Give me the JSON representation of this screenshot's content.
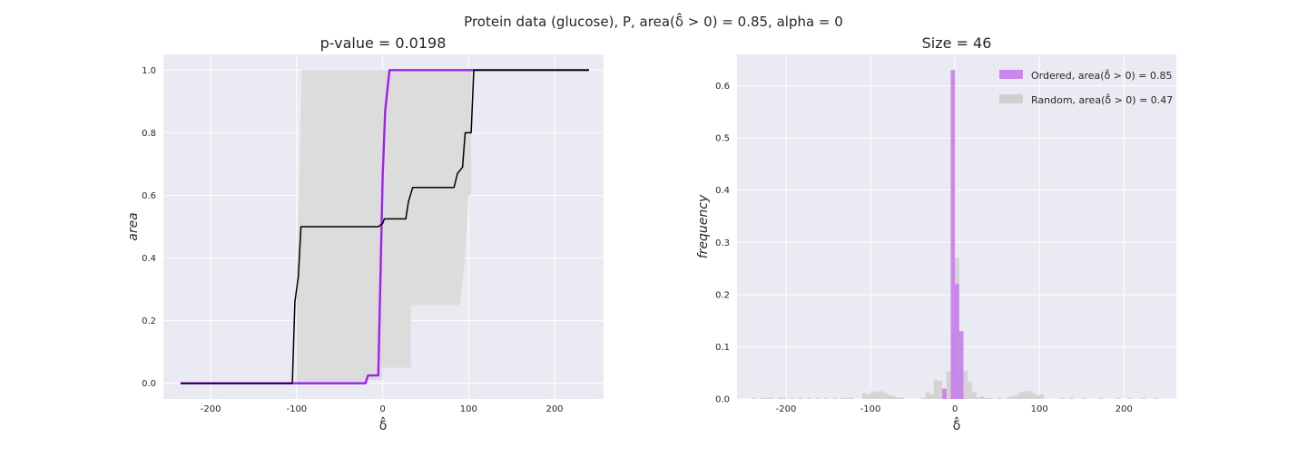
{
  "figure": {
    "suptitle": "Protein data (glucose), P, area(δ̂ > 0) = 0.85, alpha = 0"
  },
  "chart_data": [
    {
      "type": "line",
      "title": "p-value = 0.0198",
      "xlabel": "δ̂",
      "ylabel": "area",
      "xlim": [
        -255,
        257
      ],
      "ylim": [
        -0.05,
        1.05
      ],
      "xticks": [
        -200,
        -100,
        0,
        100,
        200
      ],
      "yticks": [
        0.0,
        0.2,
        0.4,
        0.6,
        0.8,
        1.0
      ],
      "grid": true,
      "band": {
        "color": "#dcdcdc",
        "upper": [
          [
            -100,
            0.0
          ],
          [
            -100,
            0.35
          ],
          [
            -97,
            0.65
          ],
          [
            -94,
            1.0
          ],
          [
            103,
            1.0
          ],
          [
            103,
            0.6
          ],
          [
            107,
            0.6
          ],
          [
            107,
            1.0
          ]
        ],
        "lower": [
          [
            -100,
            0.0
          ],
          [
            -17,
            0.0
          ],
          [
            -17,
            0.01
          ],
          [
            0,
            0.01
          ],
          [
            0,
            0.05
          ],
          [
            33,
            0.05
          ],
          [
            33,
            0.25
          ],
          [
            90,
            0.25
          ],
          [
            95,
            0.38
          ],
          [
            100,
            0.6
          ],
          [
            100,
            0.6
          ],
          [
            107,
            0.6
          ],
          [
            107,
            1.0
          ]
        ]
      },
      "series": [
        {
          "color": "#a020f0",
          "points": [
            [
              -235,
              0.0
            ],
            [
              -20,
              0.0
            ],
            [
              -17,
              0.025
            ],
            [
              -5,
              0.025
            ],
            [
              -5,
              0.025
            ],
            [
              0,
              0.66
            ],
            [
              3,
              0.87
            ],
            [
              8,
              1.0
            ],
            [
              240,
              1.0
            ]
          ]
        },
        {
          "color": "#000000",
          "points": [
            [
              -235,
              0.0
            ],
            [
              -105,
              0.0
            ],
            [
              -102,
              0.26
            ],
            [
              -98,
              0.34
            ],
            [
              -95,
              0.5
            ],
            [
              -5,
              0.5
            ],
            [
              0,
              0.51
            ],
            [
              2,
              0.525
            ],
            [
              27,
              0.525
            ],
            [
              30,
              0.58
            ],
            [
              35,
              0.625
            ],
            [
              83,
              0.625
            ],
            [
              87,
              0.67
            ],
            [
              93,
              0.69
            ],
            [
              96,
              0.8
            ],
            [
              103,
              0.8
            ],
            [
              106,
              1.0
            ],
            [
              240,
              1.0
            ]
          ]
        }
      ]
    },
    {
      "type": "bar",
      "title": "Size = 46",
      "xlabel": "δ̂",
      "ylabel": "frequency",
      "xlim": [
        -258,
        262
      ],
      "ylim": [
        0,
        0.66
      ],
      "xticks": [
        -200,
        -100,
        0,
        100,
        200
      ],
      "yticks": [
        0.0,
        0.1,
        0.2,
        0.3,
        0.4,
        0.5,
        0.6
      ],
      "grid": true,
      "bin_width": 5,
      "legend_position": "top-right",
      "series": [
        {
          "name": "Ordered, area(δ̂ > 0) = 0.85",
          "color": "#c77dea",
          "bins": [
            [
              -12.5,
              0.02
            ],
            [
              -2.5,
              0.63
            ],
            [
              2.5,
              0.22
            ],
            [
              7.5,
              0.13
            ]
          ]
        },
        {
          "name": "Random, area(δ̂ > 0) = 0.47",
          "color": "#cfcfcf",
          "bins": [
            [
              -237.5,
              0.002
            ],
            [
              -227.5,
              0.002
            ],
            [
              -222.5,
              0.002
            ],
            [
              -217.5,
              0.002
            ],
            [
              -207.5,
              0.002
            ],
            [
              -202.5,
              0.002
            ],
            [
              -192.5,
              0.002
            ],
            [
              -182.5,
              0.002
            ],
            [
              -172.5,
              0.002
            ],
            [
              -162.5,
              0.002
            ],
            [
              -152.5,
              0.002
            ],
            [
              -142.5,
              0.002
            ],
            [
              -132.5,
              0.002
            ],
            [
              -127.5,
              0.002
            ],
            [
              -122.5,
              0.002
            ],
            [
              -107.5,
              0.011
            ],
            [
              -102.5,
              0.009
            ],
            [
              -97.5,
              0.015
            ],
            [
              -92.5,
              0.013
            ],
            [
              -87.5,
              0.015
            ],
            [
              -82.5,
              0.011
            ],
            [
              -77.5,
              0.007
            ],
            [
              -72.5,
              0.005
            ],
            [
              -67.5,
              0.003
            ],
            [
              -62.5,
              0.002
            ],
            [
              -37.5,
              0.002
            ],
            [
              -32.5,
              0.013
            ],
            [
              -27.5,
              0.009
            ],
            [
              -22.5,
              0.037
            ],
            [
              -17.5,
              0.035
            ],
            [
              -12.5,
              0.012
            ],
            [
              -7.5,
              0.053
            ],
            [
              -2.5,
              0.13
            ],
            [
              2.5,
              0.27
            ],
            [
              7.5,
              0.05
            ],
            [
              12.5,
              0.053
            ],
            [
              17.5,
              0.033
            ],
            [
              22.5,
              0.013
            ],
            [
              27.5,
              0.003
            ],
            [
              32.5,
              0.005
            ],
            [
              37.5,
              0.002
            ],
            [
              42.5,
              0.002
            ],
            [
              52.5,
              0.002
            ],
            [
              62.5,
              0.002
            ],
            [
              67.5,
              0.005
            ],
            [
              72.5,
              0.007
            ],
            [
              77.5,
              0.012
            ],
            [
              82.5,
              0.015
            ],
            [
              87.5,
              0.015
            ],
            [
              92.5,
              0.011
            ],
            [
              97.5,
              0.007
            ],
            [
              102.5,
              0.009
            ],
            [
              127.5,
              0.002
            ],
            [
              137.5,
              0.002
            ],
            [
              152.5,
              0.002
            ],
            [
              172.5,
              0.002
            ],
            [
              192.5,
              0.002
            ],
            [
              207.5,
              0.002
            ],
            [
              222.5,
              0.002
            ],
            [
              237.5,
              0.002
            ]
          ]
        }
      ]
    }
  ]
}
